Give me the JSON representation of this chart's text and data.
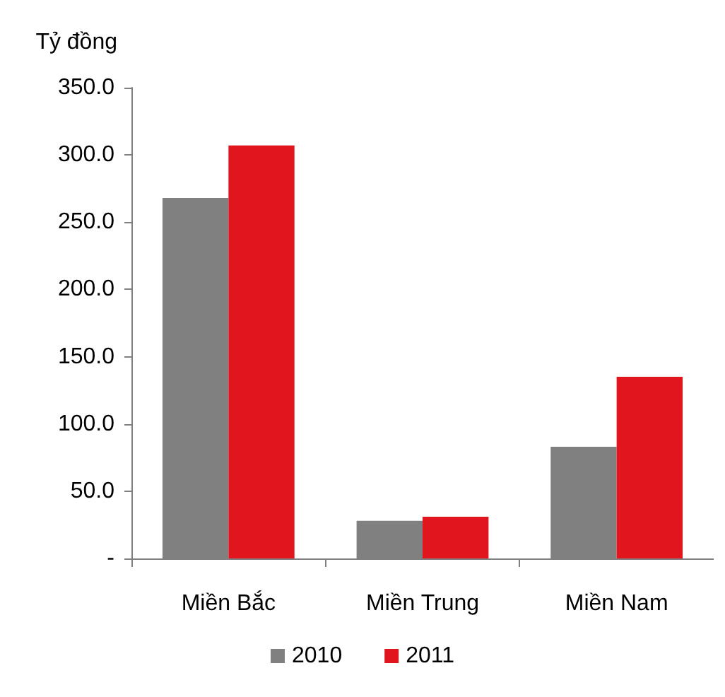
{
  "chart_data": {
    "type": "bar",
    "ylabel": "Tỷ đồng",
    "categories": [
      "Miền Bắc",
      "Miền Trung",
      "Miền Nam"
    ],
    "series": [
      {
        "name": "2010",
        "color": "#808080",
        "values": [
          268,
          28,
          83
        ]
      },
      {
        "name": "2011",
        "color": "#e0151e",
        "values": [
          307,
          31,
          135
        ]
      }
    ],
    "ylim": [
      0,
      350
    ],
    "yticks": [
      {
        "value": 0,
        "label": "-"
      },
      {
        "value": 50,
        "label": "50.0"
      },
      {
        "value": 100,
        "label": "100.0"
      },
      {
        "value": 150,
        "label": "150.0"
      },
      {
        "value": 200,
        "label": "200.0"
      },
      {
        "value": 250,
        "label": "250.0"
      },
      {
        "value": 300,
        "label": "300.0"
      },
      {
        "value": 350,
        "label": "350.0"
      }
    ],
    "grid": false,
    "legend": "bottom"
  }
}
